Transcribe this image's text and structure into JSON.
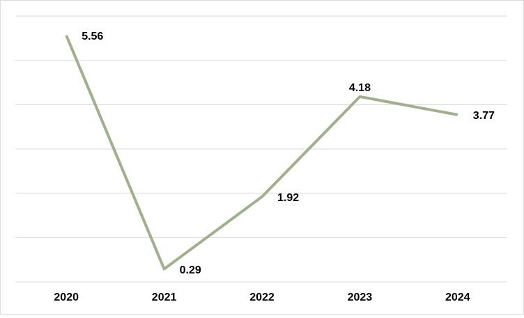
{
  "chart_data": {
    "type": "line",
    "categories": [
      "2020",
      "2021",
      "2022",
      "2023",
      "2024"
    ],
    "values": [
      5.56,
      0.29,
      1.92,
      4.18,
      3.77
    ],
    "color": "#9fb08c",
    "ylim": [
      0,
      6
    ],
    "yticks": [
      0,
      1,
      2,
      3,
      4,
      5,
      6
    ],
    "show_ytick_labels": false,
    "grid": true
  }
}
